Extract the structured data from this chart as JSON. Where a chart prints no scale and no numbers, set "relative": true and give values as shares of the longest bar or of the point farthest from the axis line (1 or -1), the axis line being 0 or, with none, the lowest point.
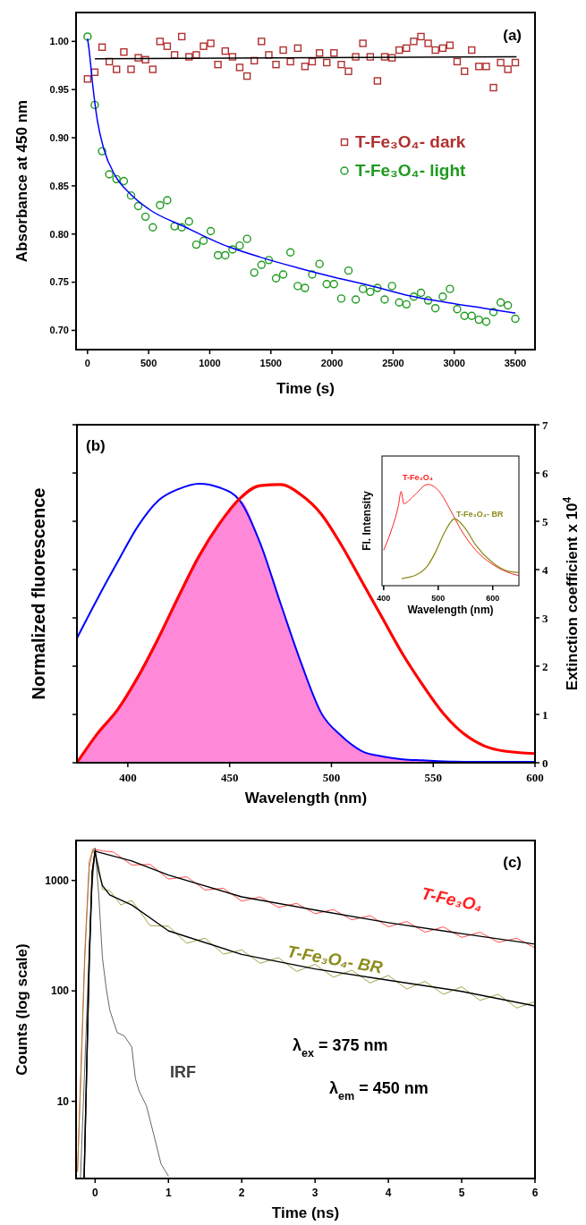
{
  "chart_data": [
    {
      "type": "scatter",
      "xlabel": "Time (s)",
      "ylabel": "Absorbance at 450 nm",
      "annotations": [
        "(a)"
      ],
      "legend": "right",
      "xlim": [
        -94,
        3661
      ],
      "xticks": [
        0,
        500,
        1000,
        1500,
        2000,
        2500,
        3000,
        3500
      ],
      "ylim": [
        0.68,
        1.03
      ],
      "yticks": [
        {
          "value": 0.7,
          "label": "0.70"
        },
        {
          "value": 0.75,
          "label": "0.75"
        },
        {
          "value": 0.8,
          "label": "0.80"
        },
        {
          "value": 0.85,
          "label": "0.85"
        },
        {
          "value": 0.9,
          "label": "0.90"
        },
        {
          "value": 0.95,
          "label": "0.95"
        },
        {
          "value": 1.0,
          "label": "1.00"
        }
      ],
      "x": [
        0,
        59,
        119,
        178,
        237,
        297,
        356,
        415,
        474,
        534,
        593,
        652,
        712,
        771,
        830,
        890,
        949,
        1008,
        1067,
        1127,
        1186,
        1245,
        1305,
        1364,
        1423,
        1483,
        1542,
        1601,
        1660,
        1720,
        1779,
        1838,
        1898,
        1957,
        2016,
        2076,
        2135,
        2194,
        2253,
        2313,
        2372,
        2431,
        2491,
        2550,
        2609,
        2669,
        2728,
        2787,
        2846,
        2906,
        2965,
        3024,
        3084,
        3143,
        3202,
        3262,
        3321,
        3380,
        3439,
        3500
      ],
      "series": [
        {
          "name": "T-Fe₃O₄- dark",
          "marker": "square",
          "color": "#b03030",
          "values": [
            0.961,
            0.968,
            0.994,
            0.979,
            0.971,
            0.989,
            0.971,
            0.983,
            0.981,
            0.971,
            1.0,
            0.995,
            0.986,
            1.005,
            0.984,
            0.986,
            0.995,
            0.998,
            0.976,
            0.99,
            0.984,
            0.973,
            0.964,
            0.98,
            1.0,
            0.986,
            0.976,
            0.991,
            0.979,
            0.993,
            0.974,
            0.979,
            0.988,
            0.978,
            0.988,
            0.976,
            0.969,
            0.984,
            0.998,
            0.984,
            0.959,
            0.984,
            0.983,
            0.991,
            0.993,
            1.0,
            1.005,
            0.998,
            0.991,
            0.993,
            0.996,
            0.979,
            0.969,
            0.991,
            0.974,
            0.974,
            0.952,
            0.978,
            0.971,
            0.978
          ]
        },
        {
          "name": "T-Fe₃O₄- light",
          "marker": "circle",
          "color": "#1f9a1f",
          "values": [
            1.005,
            0.934,
            0.886,
            0.862,
            0.857,
            0.855,
            0.84,
            0.829,
            0.818,
            0.807,
            0.83,
            0.835,
            0.808,
            0.807,
            0.813,
            0.789,
            0.793,
            0.803,
            0.778,
            0.778,
            0.784,
            0.788,
            0.795,
            0.76,
            0.768,
            0.773,
            0.754,
            0.758,
            0.781,
            0.746,
            0.744,
            0.758,
            0.769,
            0.748,
            0.748,
            0.733,
            0.762,
            0.732,
            0.743,
            0.74,
            0.744,
            0.732,
            0.746,
            0.729,
            0.727,
            0.735,
            0.739,
            0.731,
            0.723,
            0.735,
            0.743,
            0.722,
            0.715,
            0.715,
            0.711,
            0.709,
            0.719,
            0.729,
            0.726,
            0.712
          ]
        },
        {
          "type": "line",
          "color": "#000000",
          "x": [
            60,
            3510
          ],
          "values": [
            0.982,
            0.984
          ]
        },
        {
          "type": "line",
          "color": "#0000ff",
          "x": [
            0,
            12,
            43,
            79,
            134,
            225,
            347,
            500,
            804,
            1109,
            1413,
            1718,
            2023,
            2327,
            2632,
            2936,
            3241,
            3500
          ],
          "values": [
            1.003,
            0.992,
            0.954,
            0.919,
            0.888,
            0.861,
            0.842,
            0.826,
            0.807,
            0.789,
            0.776,
            0.765,
            0.755,
            0.746,
            0.736,
            0.729,
            0.723,
            0.718
          ]
        }
      ]
    },
    {
      "type": "line",
      "xlabel": "Wavelength (nm)",
      "ylabel": "Normalized fluorescence",
      "y2label": "Extinction coefficient x 10$^{4}$",
      "annotations": [
        "(b)"
      ],
      "xlim": [
        375,
        600
      ],
      "xticks": [
        400,
        450,
        500,
        550,
        600
      ],
      "y2lim": [
        0,
        7
      ],
      "y2ticks": [
        0,
        1,
        2,
        3,
        4,
        5,
        6,
        7
      ],
      "x": [
        375,
        385,
        395,
        405,
        415,
        425,
        435,
        445,
        455,
        465,
        475,
        485,
        495,
        505,
        515,
        525,
        535,
        545,
        555,
        565,
        575,
        585,
        600
      ],
      "series": [
        {
          "type": "area",
          "axis": "y2",
          "color": "#ff88d8",
          "values": [
            0,
            0.6,
            1.1,
            1.78,
            2.58,
            3.45,
            4.28,
            4.95,
            5.43,
            4.55,
            3.3,
            2.08,
            1.03,
            0.55,
            0.24,
            0.13,
            0.07,
            0.05,
            0.03,
            0.02,
            0.02,
            0.02,
            0.02
          ]
        },
        {
          "axis": "y2",
          "color": "#0000ff",
          "values": [
            2.58,
            3.39,
            4.16,
            4.9,
            5.43,
            5.67,
            5.78,
            5.7,
            5.43,
            4.55,
            3.3,
            2.08,
            1.03,
            0.55,
            0.24,
            0.13,
            0.07,
            0.05,
            0.03,
            0.02,
            0.02,
            0.02,
            0.02
          ]
        },
        {
          "axis": "y2",
          "color": "#ff0000",
          "values": [
            0,
            0.6,
            1.1,
            1.78,
            2.58,
            3.45,
            4.28,
            4.95,
            5.47,
            5.74,
            5.76,
            5.55,
            5.15,
            4.5,
            3.75,
            3.0,
            2.25,
            1.6,
            1.02,
            0.6,
            0.35,
            0.24,
            0.19
          ]
        }
      ]
    },
    {
      "type": "line",
      "relative": true,
      "xlabel": "Wavelength (nm)",
      "ylabel": "Fl. Intensity",
      "xlim": [
        397,
        648
      ],
      "xticks": [
        400,
        500,
        600
      ],
      "series": [
        {
          "name": "T-Fe₃O₄",
          "color": "#ff2020",
          "x": [
            400,
            413,
            427,
            432,
            437,
            454,
            481,
            502,
            522,
            542,
            569,
            597,
            624,
            647
          ],
          "values": [
            0.35,
            0.53,
            0.79,
            0.93,
            0.81,
            0.88,
            1.0,
            0.93,
            0.75,
            0.55,
            0.35,
            0.22,
            0.14,
            0.1
          ]
        },
        {
          "name": "T-Fe₃O₄- BR",
          "color": "#8c8c1e",
          "x": [
            433,
            461,
            481,
            495,
            512,
            530,
            549,
            569,
            597,
            624,
            647
          ],
          "values": [
            0.07,
            0.11,
            0.2,
            0.33,
            0.53,
            0.66,
            0.57,
            0.4,
            0.24,
            0.15,
            0.13
          ]
        }
      ]
    },
    {
      "type": "line",
      "log": "y",
      "xlabel": "Time (ns)",
      "ylabel": "Counts (log scale)",
      "annotations": [
        "(c)",
        "λ$_{ex}$ = 375 nm",
        "λ$_{em}$ = 450 nm"
      ],
      "xlim": [
        -0.26,
        6
      ],
      "xticks": [
        0,
        1,
        2,
        3,
        4,
        5,
        6
      ],
      "ylim": [
        2,
        2300
      ],
      "yticks": [
        10,
        100,
        1000
      ],
      "series": [
        {
          "name": "T-Fe₃O₄",
          "color": "#ff2020",
          "x": [
            -0.24,
            -0.19,
            -0.14,
            -0.08,
            -0.03,
            0.1,
            0.25,
            0.5,
            0.75,
            1,
            1.25,
            1.5,
            1.75,
            2,
            2.25,
            2.5,
            2.75,
            3,
            3.25,
            3.5,
            3.75,
            4,
            4.25,
            4.5,
            4.75,
            5,
            5.25,
            5.5,
            5.75,
            6
          ],
          "values": [
            2.3,
            23,
            230,
            1470,
            1930,
            1850,
            1810,
            1380,
            1400,
            1030,
            1080,
            820,
            850,
            650,
            710,
            570,
            620,
            500,
            545,
            440,
            480,
            380,
            425,
            340,
            380,
            305,
            340,
            275,
            300,
            245
          ]
        },
        {
          "name": "T-Fe₃O₄- BR",
          "color": "#8c8c1e",
          "x": [
            -0.24,
            -0.19,
            -0.14,
            -0.08,
            -0.03,
            0.05,
            0.1,
            0.2,
            0.35,
            0.5,
            0.75,
            1,
            1.25,
            1.5,
            1.75,
            2,
            2.25,
            2.5,
            2.75,
            3,
            3.25,
            3.5,
            3.75,
            4,
            4.25,
            4.5,
            4.75,
            5,
            5.25,
            5.5,
            5.75,
            6
          ],
          "values": [
            2.3,
            20,
            200,
            1300,
            1900,
            1350,
            830,
            810,
            600,
            660,
            390,
            385,
            270,
            300,
            215,
            235,
            178,
            200,
            150,
            174,
            133,
            154,
            118,
            138,
            104,
            122,
            93,
            109,
            82,
            93,
            70,
            80
          ]
        },
        {
          "name": "IRF",
          "color": "#404040",
          "x": [
            -0.2,
            -0.1,
            -0.05,
            0,
            0.05,
            0.1,
            0.15,
            0.2,
            0.3,
            0.4,
            0.5,
            0.55,
            0.6,
            0.7,
            0.8,
            0.9,
            1.0
          ],
          "values": [
            2,
            107,
            735,
            1970,
            735,
            199,
            107,
            67,
            42,
            39,
            31,
            16,
            12.4,
            9.1,
            5,
            2.7,
            2.1
          ]
        },
        {
          "color": "#000000",
          "x": [
            -0.15,
            -0.08,
            -0.04,
            0,
            0.05,
            0.5,
            1,
            2,
            3,
            4,
            5,
            6
          ],
          "values": [
            2,
            200,
            1200,
            1850,
            1800,
            1500,
            1120,
            710,
            540,
            415,
            330,
            265
          ]
        },
        {
          "color": "#000000",
          "x": [
            -0.15,
            -0.08,
            -0.04,
            0,
            0.05,
            0.1,
            0.2,
            0.5,
            1,
            2,
            3,
            4,
            5,
            6
          ],
          "values": [
            2,
            180,
            1150,
            1850,
            1200,
            900,
            740,
            600,
            350,
            214,
            158,
            125,
            99,
            73
          ]
        }
      ]
    }
  ]
}
